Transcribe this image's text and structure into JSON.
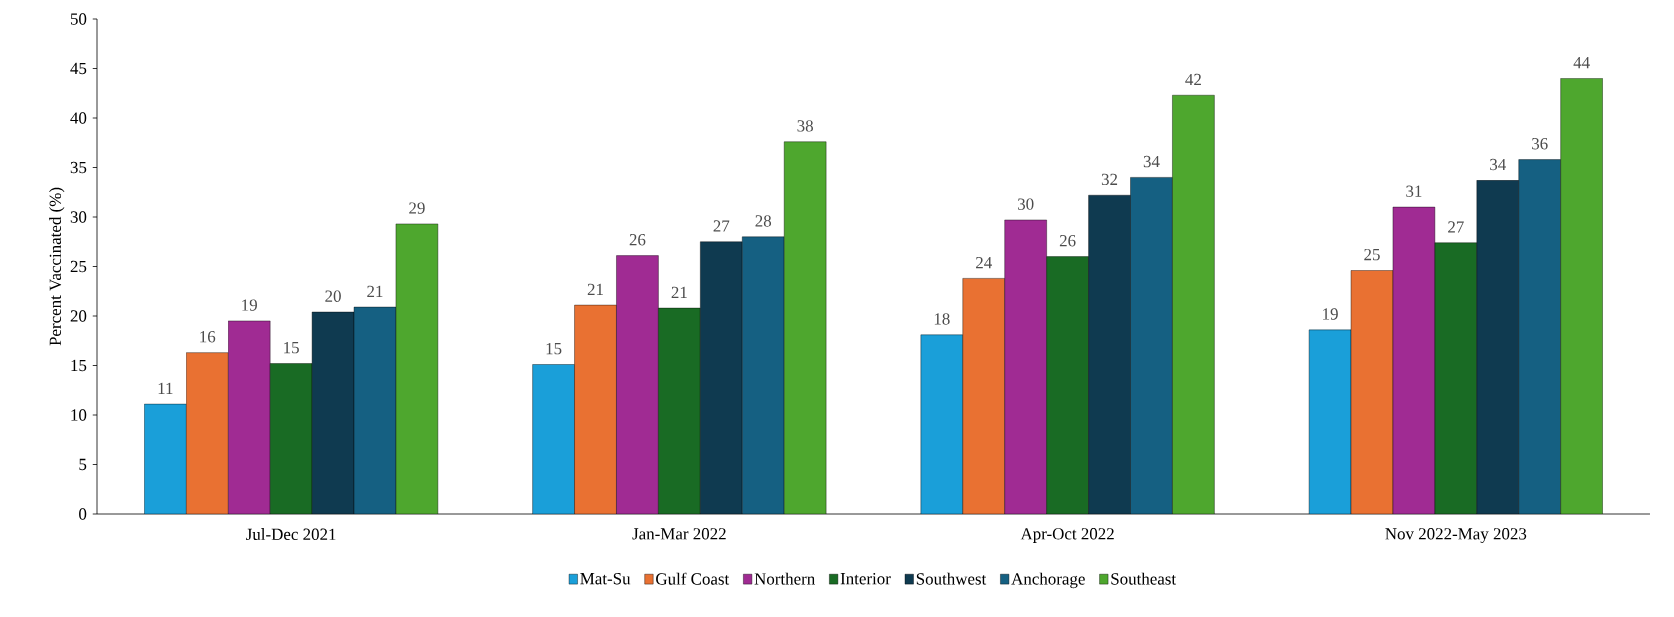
{
  "chart_data": {
    "type": "bar",
    "ylabel": "Percent Vaccinated (%)",
    "categories": [
      "Jul-Dec 2021",
      "Jan-Mar 2022",
      "Apr-Oct 2022",
      "Nov 2022-May 2023"
    ],
    "series": [
      {
        "name": "Mat-Su",
        "color": "#1a9fd9",
        "values": [
          11.1,
          15.1,
          18.1,
          18.6
        ],
        "value_labels": [
          "11",
          "15",
          "18",
          "19"
        ]
      },
      {
        "name": "Gulf Coast",
        "color": "#e97132",
        "values": [
          16.3,
          21.1,
          23.8,
          24.6
        ],
        "value_labels": [
          "16",
          "21",
          "24",
          "25"
        ]
      },
      {
        "name": "Northern",
        "color": "#a02b93",
        "values": [
          19.5,
          26.1,
          29.7,
          31.0
        ],
        "value_labels": [
          "19",
          "26",
          "30",
          "31"
        ]
      },
      {
        "name": "Interior",
        "color": "#196b24",
        "values": [
          15.2,
          20.8,
          26.0,
          27.4
        ],
        "value_labels": [
          "15",
          "21",
          "26",
          "27"
        ]
      },
      {
        "name": "Southwest",
        "color": "#0f3a50",
        "values": [
          20.4,
          27.5,
          32.2,
          33.7
        ],
        "value_labels": [
          "20",
          "27",
          "32",
          "34"
        ]
      },
      {
        "name": "Anchorage",
        "color": "#156082",
        "values": [
          20.9,
          28.0,
          34.0,
          35.8
        ],
        "value_labels": [
          "21",
          "28",
          "34",
          "36"
        ]
      },
      {
        "name": "Southeast",
        "color": "#4ea72e",
        "values": [
          29.3,
          37.6,
          42.3,
          44.0
        ],
        "value_labels": [
          "29",
          "38",
          "42",
          "44"
        ]
      }
    ],
    "ylim": [
      0,
      50
    ],
    "yticks": [
      0,
      5,
      10,
      15,
      20,
      25,
      30,
      35,
      40,
      45,
      50
    ],
    "grid": false,
    "legend": "bottom"
  }
}
